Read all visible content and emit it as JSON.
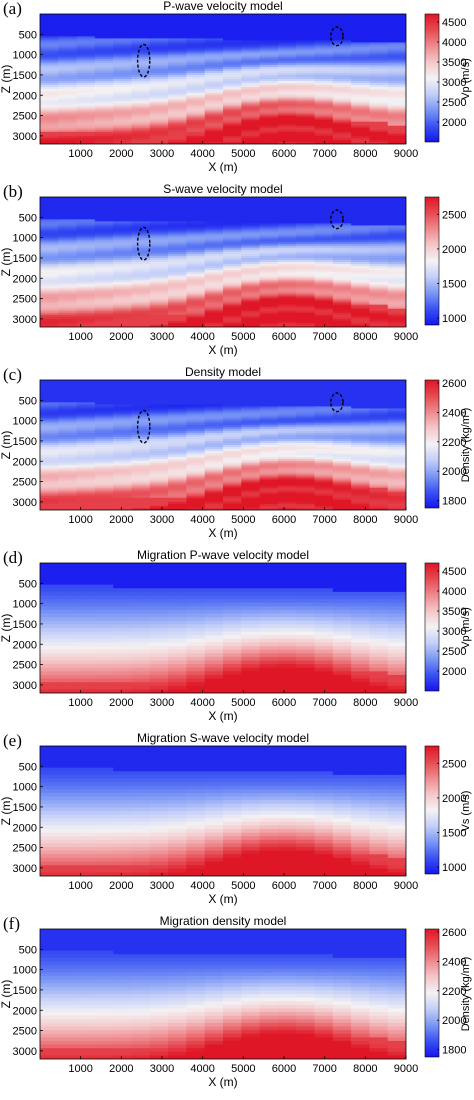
{
  "colors": {
    "colormap": [
      "#1515ee",
      "#3a52f2",
      "#7c97f5",
      "#c4cff8",
      "#f4f2f4",
      "#f4c7c9",
      "#ee8a8e",
      "#e64a52",
      "#df1626"
    ],
    "ellipse": "#000000",
    "axis": "#000000"
  },
  "chart_data": [
    {
      "type": "heatmap",
      "panel_label": "(a)",
      "title": "P-wave velocity model",
      "xlabel": "X (m)",
      "ylabel": "Z (m)",
      "x_ticks": [
        1000,
        2000,
        3000,
        4000,
        5000,
        6000,
        7000,
        8000,
        9000
      ],
      "y_ticks": [
        500,
        1000,
        1500,
        2000,
        2500,
        3000
      ],
      "xlim": [
        0,
        9000
      ],
      "ylim": [
        3200,
        0
      ],
      "colorbar": {
        "label": "Vp (m/s)",
        "ticks": [
          2000,
          2500,
          3000,
          3500,
          4000,
          4500
        ],
        "range": [
          1500,
          4700
        ]
      },
      "style": "sharp",
      "annotations": [
        {
          "shape": "dashed-ellipse",
          "x": 2550,
          "z": 1150,
          "rx": 150,
          "rz": 400
        },
        {
          "shape": "dashed-ellipse",
          "x": 7300,
          "z": 550,
          "rx": 150,
          "rz": 230
        }
      ]
    },
    {
      "type": "heatmap",
      "panel_label": "(b)",
      "title": "S-wave velocity model",
      "xlabel": "X (m)",
      "ylabel": "Z (m)",
      "x_ticks": [
        1000,
        2000,
        3000,
        4000,
        5000,
        6000,
        7000,
        8000,
        9000
      ],
      "y_ticks": [
        500,
        1000,
        1500,
        2000,
        2500,
        3000
      ],
      "xlim": [
        0,
        9000
      ],
      "ylim": [
        3200,
        0
      ],
      "colorbar": {
        "label": "",
        "ticks": [
          1000,
          1500,
          2000,
          2500
        ],
        "range": [
          900,
          2750
        ]
      },
      "style": "sharp",
      "annotations": [
        {
          "shape": "dashed-ellipse",
          "x": 2550,
          "z": 1150,
          "rx": 150,
          "rz": 400
        },
        {
          "shape": "dashed-ellipse",
          "x": 7300,
          "z": 550,
          "rx": 150,
          "rz": 230
        }
      ]
    },
    {
      "type": "heatmap",
      "panel_label": "(c)",
      "title": "Density model",
      "xlabel": "X (m)",
      "ylabel": "Z (m)",
      "x_ticks": [
        1000,
        2000,
        3000,
        4000,
        5000,
        6000,
        7000,
        8000,
        9000
      ],
      "y_ticks": [
        500,
        1000,
        1500,
        2000,
        2500,
        3000
      ],
      "xlim": [
        0,
        9000
      ],
      "ylim": [
        3200,
        0
      ],
      "colorbar": {
        "label": "Density (kg/m³)",
        "ticks": [
          1800,
          2000,
          2200,
          2400,
          2600
        ],
        "range": [
          1750,
          2620
        ]
      },
      "style": "sharp",
      "annotations": [
        {
          "shape": "dashed-ellipse",
          "x": 2550,
          "z": 1150,
          "rx": 150,
          "rz": 400
        },
        {
          "shape": "dashed-ellipse",
          "x": 7300,
          "z": 550,
          "rx": 150,
          "rz": 230
        }
      ]
    },
    {
      "type": "heatmap",
      "panel_label": "(d)",
      "title": "Migration P-wave velocity model",
      "xlabel": "X (m)",
      "ylabel": "Z (m)",
      "x_ticks": [
        1000,
        2000,
        3000,
        4000,
        5000,
        6000,
        7000,
        8000,
        9000
      ],
      "y_ticks": [
        500,
        1000,
        1500,
        2000,
        2500,
        3000
      ],
      "xlim": [
        0,
        9000
      ],
      "ylim": [
        3200,
        0
      ],
      "colorbar": {
        "label": "Vp (m/s)",
        "ticks": [
          2000,
          2500,
          3000,
          3500,
          4000,
          4500
        ],
        "range": [
          1500,
          4700
        ]
      },
      "style": "smooth",
      "annotations": []
    },
    {
      "type": "heatmap",
      "panel_label": "(e)",
      "title": "Migration S-wave velocity model",
      "xlabel": "X (m)",
      "ylabel": "Z (m)",
      "x_ticks": [
        1000,
        2000,
        3000,
        4000,
        5000,
        6000,
        7000,
        8000,
        9000
      ],
      "y_ticks": [
        500,
        1000,
        1500,
        2000,
        2500,
        3000
      ],
      "xlim": [
        0,
        9000
      ],
      "ylim": [
        3200,
        0
      ],
      "colorbar": {
        "label": "Vs (m/s)",
        "ticks": [
          1000,
          1500,
          2000,
          2500
        ],
        "range": [
          900,
          2750
        ]
      },
      "style": "smooth",
      "annotations": []
    },
    {
      "type": "heatmap",
      "panel_label": "(f)",
      "title": "Migration density model",
      "xlabel": "X (m)",
      "ylabel": "Z (m)",
      "x_ticks": [
        1000,
        2000,
        3000,
        4000,
        5000,
        6000,
        7000,
        8000,
        9000
      ],
      "y_ticks": [
        500,
        1000,
        1500,
        2000,
        2500,
        3000
      ],
      "xlim": [
        0,
        9000
      ],
      "ylim": [
        3200,
        0
      ],
      "colorbar": {
        "label": "Density (kg/m³)",
        "ticks": [
          1800,
          2000,
          2200,
          2400,
          2600
        ],
        "range": [
          1750,
          2620
        ]
      },
      "style": "smooth",
      "annotations": []
    }
  ]
}
